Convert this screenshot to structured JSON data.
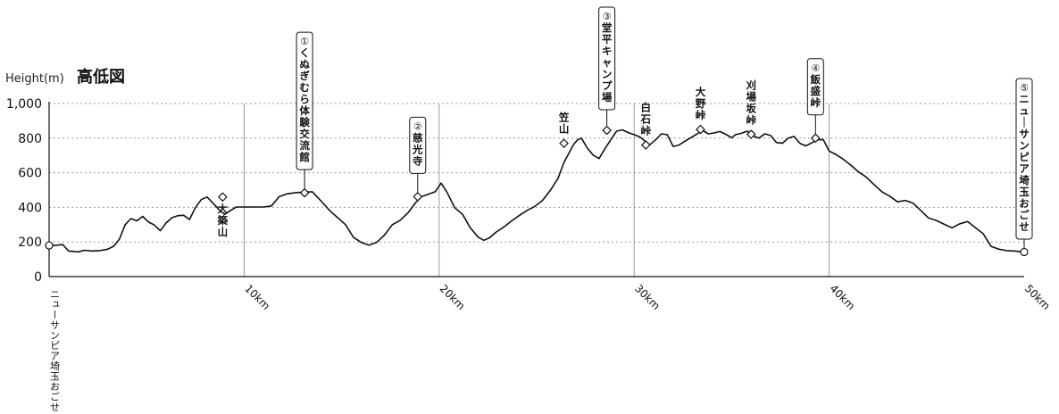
{
  "chart_data": {
    "type": "line",
    "title": "高低図",
    "ylabel": "Height(m)",
    "xlabel": "",
    "xlim": [
      0,
      50
    ],
    "ylim": [
      0,
      1000
    ],
    "y_ticks": [
      "0",
      "200",
      "400",
      "600",
      "800",
      "1,000"
    ],
    "y_tick_values": [
      0,
      200,
      400,
      600,
      800,
      1000
    ],
    "x_ticks": [
      "10km",
      "20km",
      "30km",
      "40km",
      "50km"
    ],
    "x_tick_values": [
      10,
      20,
      30,
      40,
      50
    ],
    "start_label": "ニューサンピア埼玉おごせ",
    "grid": {
      "horizontal": "dotted",
      "vertical": "solid"
    },
    "line_color": "#111111",
    "grid_color": "#999999",
    "series": [
      {
        "x": [
          0,
          0.3,
          0.7,
          1.0,
          1.5,
          1.8,
          2.2,
          2.6,
          3.0,
          3.3,
          3.6,
          3.9,
          4.2,
          4.5,
          4.8,
          5.1,
          5.4,
          5.7,
          6.0,
          6.3,
          6.6,
          6.9,
          7.2,
          7.5,
          7.8,
          8.1,
          8.4,
          8.7,
          9.0,
          9.3,
          9.6,
          9.9,
          10.3,
          10.6,
          11.0,
          11.4,
          11.8,
          12.2,
          12.6,
          13.0,
          13.5,
          14.0,
          14.4,
          14.8,
          15.2,
          15.6,
          16.0,
          16.4,
          16.8,
          17.2,
          17.6,
          18.0,
          18.4,
          18.8,
          19.1,
          19.5,
          19.8,
          20.1,
          20.4,
          20.8,
          21.2,
          21.6,
          22.0,
          22.3,
          22.6,
          22.9,
          23.3,
          23.7,
          24.1,
          24.5,
          24.9,
          25.3,
          25.7,
          26.1,
          26.4,
          26.7,
          26.9,
          27.1,
          27.3,
          27.6,
          27.9,
          28.2,
          28.5,
          28.8,
          29.1,
          29.4,
          29.7,
          30.0,
          30.3,
          30.5,
          30.8,
          31.1,
          31.4,
          31.7,
          32.0,
          32.3,
          32.6,
          32.9,
          33.2,
          33.5,
          33.8,
          34.1,
          34.4,
          34.7,
          35.0,
          35.2,
          35.5,
          35.8,
          36.1,
          36.4,
          36.7,
          37.0,
          37.3,
          37.6,
          37.9,
          38.2,
          38.5,
          38.8,
          39.1,
          39.4,
          39.7,
          40.0,
          40.3,
          40.7,
          41.1,
          41.5,
          41.9,
          42.3,
          42.7,
          43.1,
          43.5,
          43.9,
          44.3,
          44.7,
          45.1,
          45.5,
          45.9,
          46.3,
          46.7,
          47.1,
          47.5,
          47.9,
          48.3,
          48.7,
          49.1,
          49.5,
          50.0
        ],
        "values": [
          180,
          180,
          185,
          148,
          143,
          152,
          148,
          150,
          158,
          175,
          215,
          300,
          335,
          322,
          348,
          315,
          298,
          265,
          310,
          340,
          352,
          354,
          330,
          398,
          445,
          460,
          425,
          388,
          360,
          382,
          402,
          402,
          402,
          402,
          402,
          408,
          462,
          478,
          484,
          488,
          490,
          430,
          380,
          340,
          300,
          228,
          198,
          182,
          198,
          240,
          300,
          325,
          368,
          428,
          462,
          478,
          490,
          540,
          488,
          398,
          360,
          282,
          228,
          210,
          225,
          255,
          285,
          320,
          352,
          382,
          405,
          440,
          498,
          568,
          660,
          722,
          765,
          790,
          800,
          742,
          702,
          682,
          738,
          790,
          840,
          848,
          832,
          820,
          806,
          788,
          762,
          790,
          825,
          820,
          752,
          760,
          782,
          802,
          822,
          845,
          825,
          830,
          838,
          822,
          802,
          820,
          828,
          840,
          812,
          800,
          825,
          815,
          775,
          770,
          800,
          810,
          770,
          755,
          772,
          790,
          792,
          725,
          708,
          680,
          645,
          605,
          575,
          532,
          490,
          465,
          432,
          440,
          425,
          382,
          338,
          324,
          302,
          282,
          305,
          318,
          282,
          248,
          175,
          158,
          150,
          148,
          142
        ]
      }
    ],
    "waypoints": [
      {
        "x": 0,
        "y": 180,
        "marker": "circle",
        "label": "",
        "box": false
      },
      {
        "x": 8.9,
        "y": 460,
        "marker": "diamond",
        "label": "大築山",
        "box": false,
        "placement": "below"
      },
      {
        "x": 13.1,
        "y": 484,
        "marker": "diamond",
        "number": "①",
        "label": "くぬぎむら体験交流館",
        "box": true
      },
      {
        "x": 18.9,
        "y": 462,
        "marker": "diamond",
        "number": "②",
        "label": "慈光寺",
        "box": true
      },
      {
        "x": 26.4,
        "y": 770,
        "marker": "diamond",
        "label": "笠山",
        "box": false,
        "placement": "above"
      },
      {
        "x": 28.6,
        "y": 845,
        "marker": "diamond",
        "number": "③",
        "label": "堂平キャンプ場",
        "box": true
      },
      {
        "x": 30.6,
        "y": 760,
        "marker": "diamond",
        "label": "白石峠",
        "box": false,
        "placement": "above"
      },
      {
        "x": 33.4,
        "y": 850,
        "marker": "diamond",
        "label": "大野峠",
        "box": false,
        "placement": "above"
      },
      {
        "x": 36.0,
        "y": 822,
        "marker": "diamond",
        "label": "刈場坂峠",
        "box": false,
        "placement": "above"
      },
      {
        "x": 39.3,
        "y": 800,
        "marker": "diamond",
        "number": "④",
        "label": "飯盛峠",
        "box": true
      },
      {
        "x": 50,
        "y": 142,
        "marker": "circle",
        "number": "⑤",
        "label": "ニューサンピア埼玉おごせ",
        "box": true
      }
    ]
  }
}
